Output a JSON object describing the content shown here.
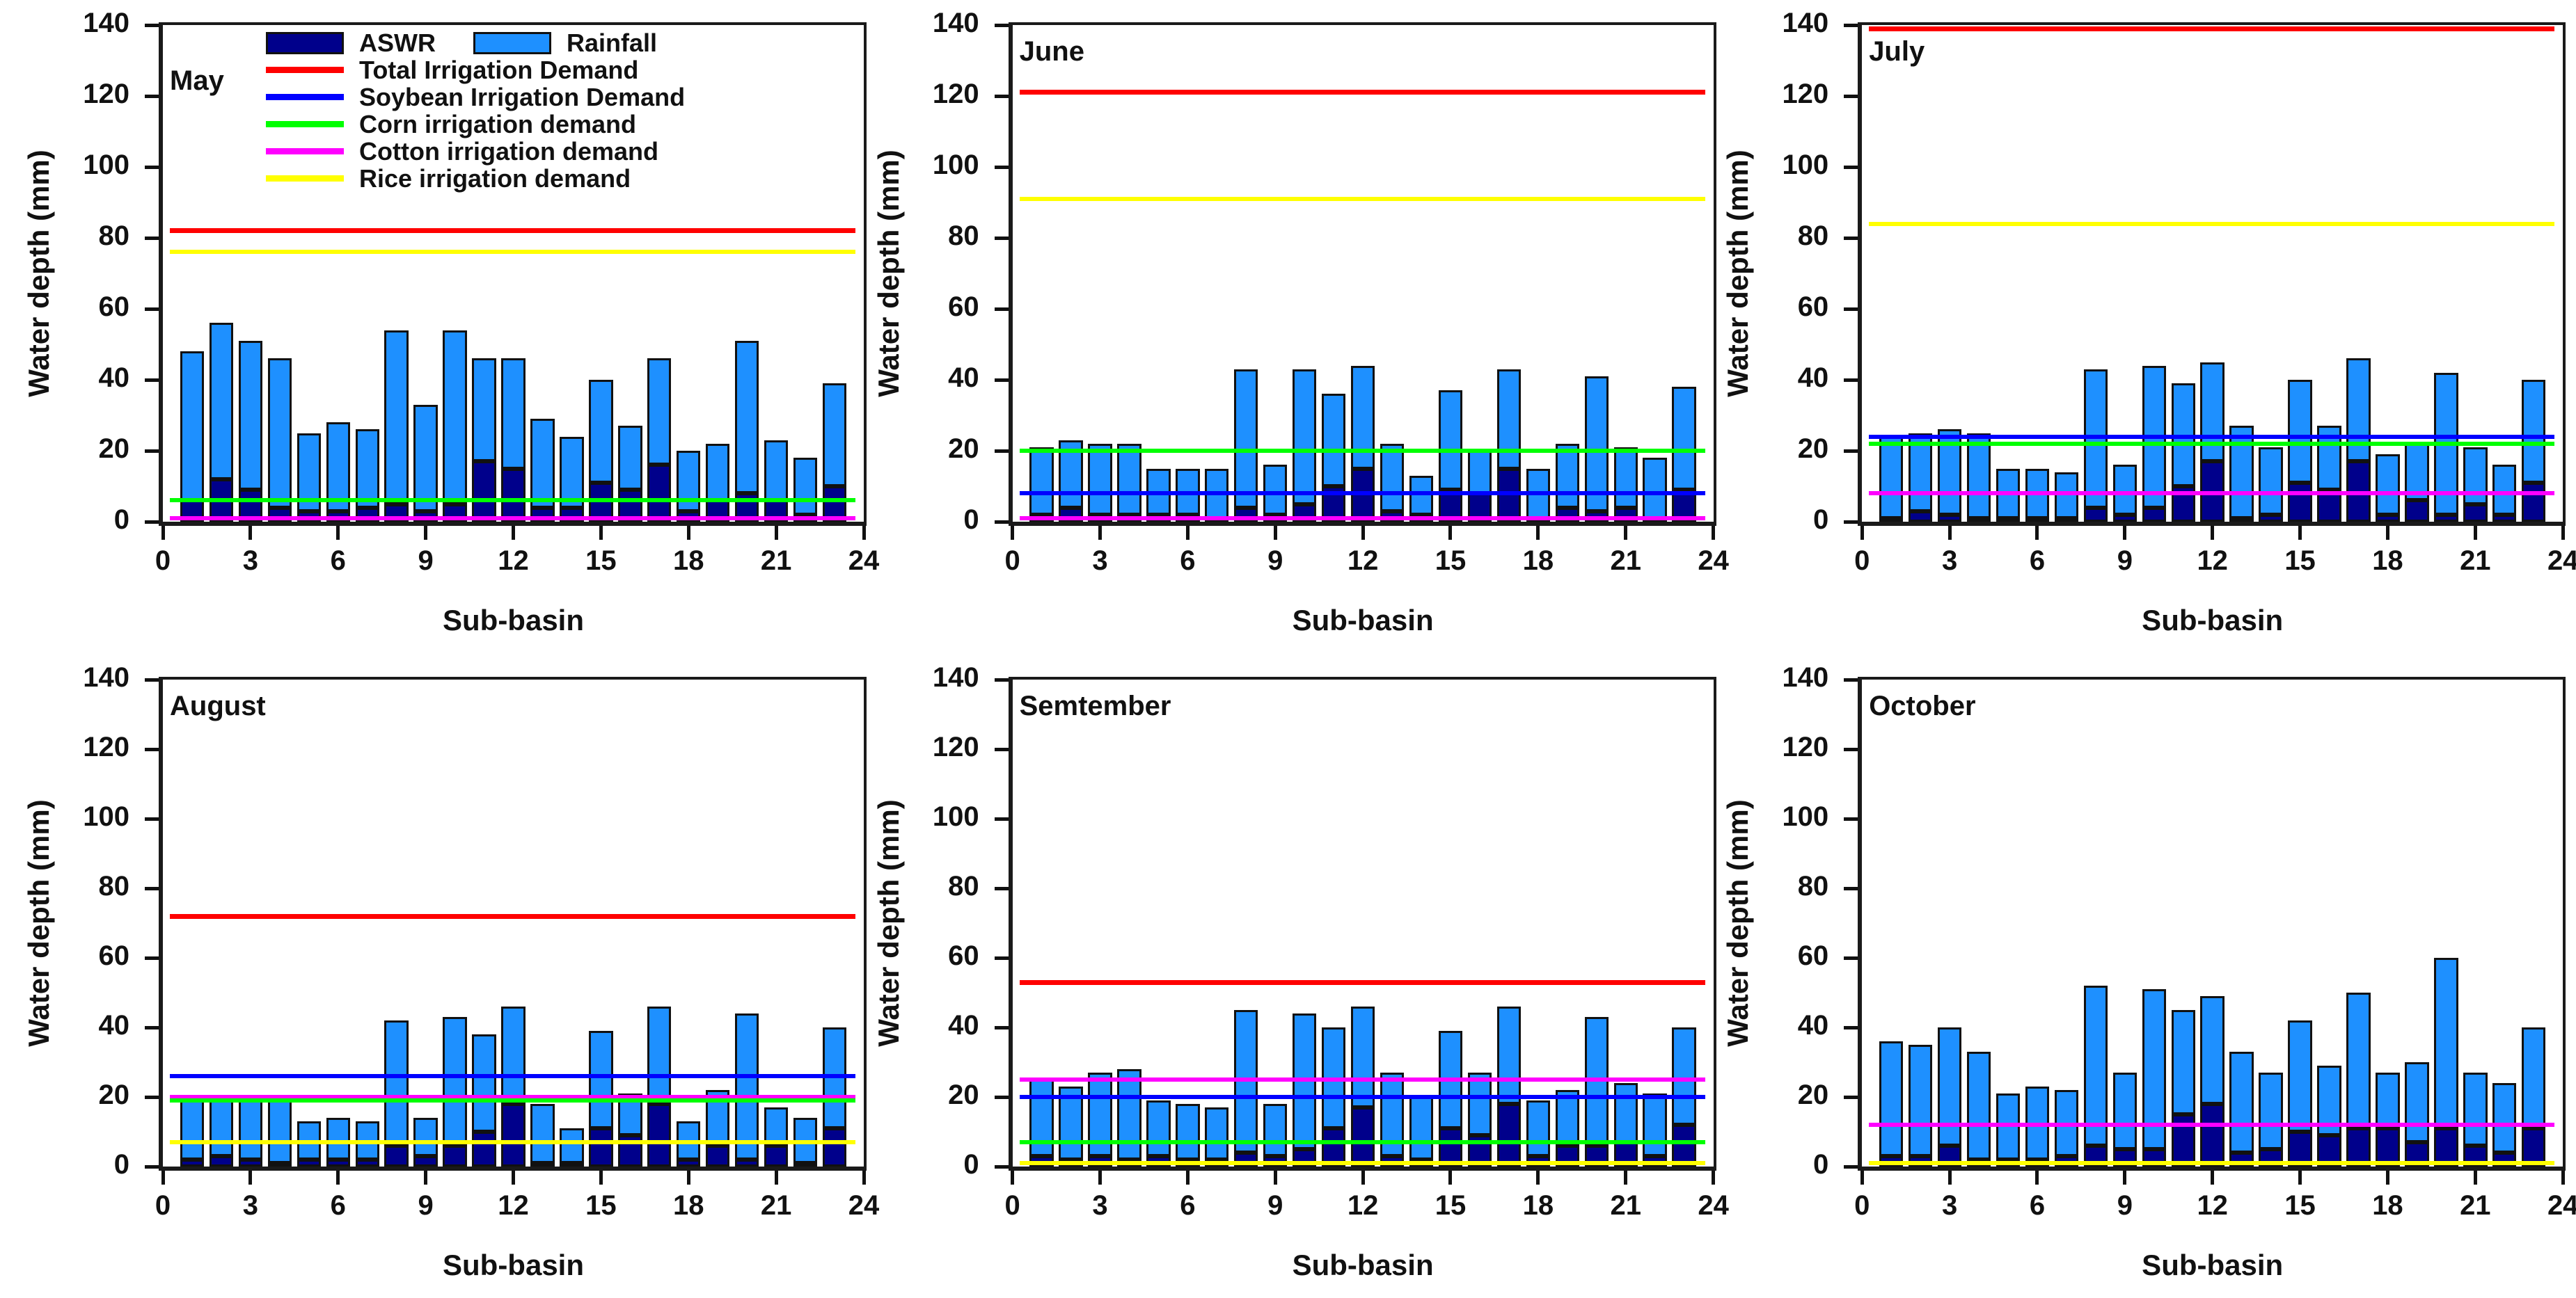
{
  "axes": {
    "x_label": "Sub-basin",
    "y_label": "Water depth (mm)",
    "x_ticks": [
      0,
      3,
      6,
      9,
      12,
      15,
      18,
      21,
      24
    ],
    "y_ticks": [
      0,
      20,
      40,
      60,
      80,
      100,
      120,
      140
    ],
    "x_range": [
      0,
      24
    ],
    "y_range": [
      0,
      140
    ]
  },
  "colors": {
    "aswr": "#00008B",
    "rainfall": "#1E90FF",
    "total": "#FF0000",
    "soybean": "#0000FF",
    "corn": "#00FF00",
    "cotton": "#FF00FF",
    "rice": "#FFFF00",
    "axis": "#1a1a1a"
  },
  "legend": {
    "bars": [
      {
        "key": "aswr",
        "label": "ASWR",
        "color": "#00008B"
      },
      {
        "key": "rainfall",
        "label": "Rainfall",
        "color": "#1E90FF"
      }
    ],
    "lines": [
      {
        "key": "total",
        "label": "Total Irrigation Demand",
        "color": "#FF0000"
      },
      {
        "key": "soybean",
        "label": "Soybean Irrigation Demand",
        "color": "#0000FF"
      },
      {
        "key": "corn",
        "label": "Corn irrigation demand",
        "color": "#00FF00"
      },
      {
        "key": "cotton",
        "label": "Cotton irrigation demand",
        "color": "#FF00FF"
      },
      {
        "key": "rice",
        "label": "Rice irrigation demand",
        "color": "#FFFF00"
      }
    ]
  },
  "bar_value_semantics": "bars are stacked: ASWR is the dark bottom segment; series 'Rainfall' values below are total bar heights (ASWR + Rainfall segment), in mm",
  "chart_data": [
    {
      "type": "bar",
      "title": "May",
      "xlabel": "Sub-basin",
      "ylabel": "Water depth (mm)",
      "xlim": [
        0,
        24
      ],
      "ylim": [
        0,
        140
      ],
      "stacked": true,
      "categories": [
        1,
        2,
        3,
        4,
        5,
        6,
        7,
        8,
        9,
        10,
        11,
        12,
        13,
        14,
        15,
        16,
        17,
        18,
        19,
        20,
        21,
        22,
        23
      ],
      "series": [
        {
          "name": "ASWR",
          "values": [
            6,
            12,
            9,
            4,
            3,
            3,
            4,
            5,
            3,
            5,
            17,
            15,
            4,
            4,
            11,
            9,
            16,
            3,
            6,
            8,
            6,
            2,
            10
          ]
        },
        {
          "name": "Rainfall",
          "values": [
            48,
            56,
            51,
            46,
            25,
            28,
            26,
            54,
            33,
            54,
            46,
            46,
            29,
            24,
            40,
            27,
            46,
            20,
            22,
            51,
            23,
            18,
            39
          ]
        }
      ],
      "demand_lines": [
        {
          "key": "total",
          "label": "Total Irrigation Demand",
          "value": 82
        },
        {
          "key": "rice",
          "label": "Rice irrigation demand",
          "value": 76
        },
        {
          "key": "corn",
          "label": "Corn irrigation demand",
          "value": 6
        },
        {
          "key": "cotton",
          "label": "Cotton irrigation demand",
          "value": 1
        }
      ]
    },
    {
      "type": "bar",
      "title": "June",
      "xlabel": "Sub-basin",
      "ylabel": "Water depth (mm)",
      "xlim": [
        0,
        24
      ],
      "ylim": [
        0,
        140
      ],
      "stacked": true,
      "categories": [
        1,
        2,
        3,
        4,
        5,
        6,
        7,
        8,
        9,
        10,
        11,
        12,
        13,
        14,
        15,
        16,
        17,
        18,
        19,
        20,
        21,
        22,
        23
      ],
      "series": [
        {
          "name": "ASWR",
          "values": [
            2,
            4,
            2,
            2,
            2,
            2,
            1,
            4,
            2,
            5,
            10,
            15,
            3,
            2,
            9,
            8,
            15,
            1,
            4,
            3,
            4,
            1,
            9
          ]
        },
        {
          "name": "Rainfall",
          "values": [
            21,
            23,
            22,
            22,
            15,
            15,
            15,
            43,
            16,
            43,
            36,
            44,
            22,
            13,
            37,
            20,
            43,
            15,
            22,
            41,
            21,
            18,
            38
          ]
        }
      ],
      "demand_lines": [
        {
          "key": "total",
          "label": "Total Irrigation Demand",
          "value": 121
        },
        {
          "key": "rice",
          "label": "Rice irrigation demand",
          "value": 91
        },
        {
          "key": "corn",
          "label": "Corn irrigation demand",
          "value": 20
        },
        {
          "key": "soybean",
          "label": "Soybean Irrigation Demand",
          "value": 8
        },
        {
          "key": "cotton",
          "label": "Cotton irrigation demand",
          "value": 1
        }
      ]
    },
    {
      "type": "bar",
      "title": "July",
      "xlabel": "Sub-basin",
      "ylabel": "Water depth (mm)",
      "xlim": [
        0,
        24
      ],
      "ylim": [
        0,
        140
      ],
      "stacked": true,
      "categories": [
        1,
        2,
        3,
        4,
        5,
        6,
        7,
        8,
        9,
        10,
        11,
        12,
        13,
        14,
        15,
        16,
        17,
        18,
        19,
        20,
        21,
        22,
        23
      ],
      "series": [
        {
          "name": "ASWR",
          "values": [
            1,
            3,
            2,
            1,
            1,
            1,
            1,
            4,
            2,
            4,
            10,
            17,
            1,
            2,
            11,
            9,
            17,
            2,
            6,
            2,
            5,
            2,
            11
          ]
        },
        {
          "name": "Rainfall",
          "values": [
            24,
            25,
            26,
            25,
            15,
            15,
            14,
            43,
            16,
            44,
            39,
            45,
            27,
            21,
            40,
            27,
            46,
            19,
            22,
            42,
            21,
            16,
            40
          ]
        }
      ],
      "demand_lines": [
        {
          "key": "total",
          "label": "Total Irrigation Demand",
          "value": 139
        },
        {
          "key": "rice",
          "label": "Rice irrigation demand",
          "value": 84
        },
        {
          "key": "soybean",
          "label": "Soybean Irrigation Demand",
          "value": 24
        },
        {
          "key": "corn",
          "label": "Corn irrigation demand",
          "value": 22
        },
        {
          "key": "cotton",
          "label": "Cotton irrigation demand",
          "value": 8
        }
      ]
    },
    {
      "type": "bar",
      "title": "August",
      "xlabel": "Sub-basin",
      "ylabel": "Water depth (mm)",
      "xlim": [
        0,
        24
      ],
      "ylim": [
        0,
        140
      ],
      "stacked": true,
      "categories": [
        1,
        2,
        3,
        4,
        5,
        6,
        7,
        8,
        9,
        10,
        11,
        12,
        13,
        14,
        15,
        16,
        17,
        18,
        19,
        20,
        21,
        22,
        23
      ],
      "series": [
        {
          "name": "ASWR",
          "values": [
            2,
            3,
            2,
            1,
            2,
            2,
            2,
            6,
            3,
            6,
            10,
            18,
            1,
            1,
            11,
            9,
            18,
            2,
            6,
            2,
            6,
            1,
            11
          ]
        },
        {
          "name": "Rainfall",
          "values": [
            19,
            20,
            20,
            20,
            13,
            14,
            13,
            42,
            14,
            43,
            38,
            46,
            18,
            11,
            39,
            21,
            46,
            13,
            22,
            44,
            17,
            14,
            40
          ]
        }
      ],
      "demand_lines": [
        {
          "key": "total",
          "label": "Total Irrigation Demand",
          "value": 72
        },
        {
          "key": "soybean",
          "label": "Soybean Irrigation Demand",
          "value": 26
        },
        {
          "key": "cotton",
          "label": "Cotton irrigation demand",
          "value": 20
        },
        {
          "key": "corn",
          "label": "Corn irrigation demand",
          "value": 19
        },
        {
          "key": "rice",
          "label": "Rice irrigation demand",
          "value": 7
        }
      ]
    },
    {
      "type": "bar",
      "title": "Semtember",
      "xlabel": "Sub-basin",
      "ylabel": "Water depth (mm)",
      "xlim": [
        0,
        24
      ],
      "ylim": [
        0,
        140
      ],
      "stacked": true,
      "categories": [
        1,
        2,
        3,
        4,
        5,
        6,
        7,
        8,
        9,
        10,
        11,
        12,
        13,
        14,
        15,
        16,
        17,
        18,
        19,
        20,
        21,
        22,
        23
      ],
      "series": [
        {
          "name": "ASWR",
          "values": [
            3,
            2,
            3,
            2,
            3,
            2,
            2,
            4,
            3,
            5,
            11,
            17,
            3,
            2,
            11,
            9,
            18,
            3,
            6,
            6,
            7,
            3,
            12
          ]
        },
        {
          "name": "Rainfall",
          "values": [
            25,
            23,
            27,
            28,
            19,
            18,
            17,
            45,
            18,
            44,
            40,
            46,
            27,
            20,
            39,
            27,
            46,
            19,
            22,
            43,
            24,
            21,
            40
          ]
        }
      ],
      "demand_lines": [
        {
          "key": "total",
          "label": "Total Irrigation Demand",
          "value": 53
        },
        {
          "key": "cotton",
          "label": "Cotton irrigation demand",
          "value": 25
        },
        {
          "key": "soybean",
          "label": "Soybean Irrigation Demand",
          "value": 20
        },
        {
          "key": "corn",
          "label": "Corn irrigation demand",
          "value": 7
        },
        {
          "key": "rice",
          "label": "Rice irrigation demand",
          "value": 1
        }
      ]
    },
    {
      "type": "bar",
      "title": "October",
      "xlabel": "Sub-basin",
      "ylabel": "Water depth (mm)",
      "xlim": [
        0,
        24
      ],
      "ylim": [
        0,
        140
      ],
      "stacked": true,
      "categories": [
        1,
        2,
        3,
        4,
        5,
        6,
        7,
        8,
        9,
        10,
        11,
        12,
        13,
        14,
        15,
        16,
        17,
        18,
        19,
        20,
        21,
        22,
        23
      ],
      "series": [
        {
          "name": "ASWR",
          "values": [
            3,
            3,
            6,
            2,
            2,
            2,
            3,
            6,
            5,
            5,
            15,
            18,
            4,
            5,
            10,
            9,
            11,
            11,
            7,
            11,
            6,
            4,
            11
          ]
        },
        {
          "name": "Rainfall",
          "values": [
            36,
            35,
            40,
            33,
            21,
            23,
            22,
            52,
            27,
            51,
            45,
            49,
            33,
            27,
            42,
            29,
            50,
            27,
            30,
            60,
            27,
            24,
            40
          ]
        }
      ],
      "demand_lines": [
        {
          "key": "cotton",
          "label": "Cotton irrigation demand",
          "value": 12
        },
        {
          "key": "rice",
          "label": "Rice irrigation demand",
          "value": 1
        }
      ]
    }
  ]
}
